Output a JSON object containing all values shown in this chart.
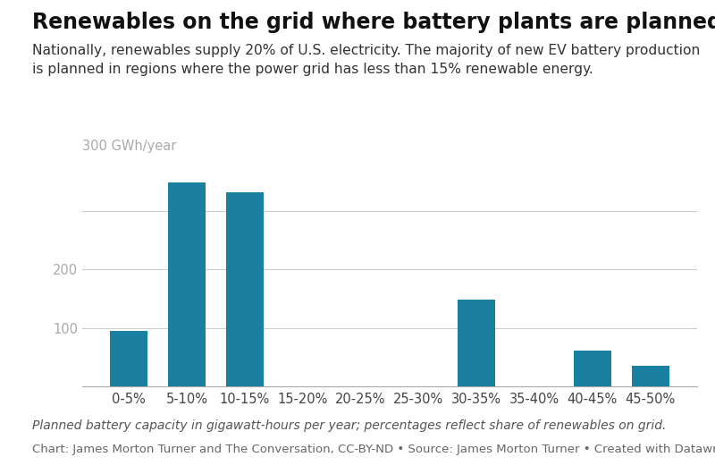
{
  "categories": [
    "0-5%",
    "5-10%",
    "10-15%",
    "15-20%",
    "20-25%",
    "25-30%",
    "30-35%",
    "35-40%",
    "40-45%",
    "45-50%"
  ],
  "values": [
    95,
    350,
    332,
    0,
    0,
    0,
    148,
    0,
    62,
    35
  ],
  "bar_color": "#1a7fa0",
  "title": "Renewables on the grid where battery plants are planned",
  "subtitle": "Nationally, renewables supply 20% of U.S. electricity. The majority of new EV battery production\nis planned in regions where the power grid has less than 15% renewable energy.",
  "gwh_label": "300 GWh/year",
  "yticks": [
    0,
    100,
    200,
    300
  ],
  "ylim": [
    0,
    390
  ],
  "footnote": "Planned battery capacity in gigawatt-hours per year; percentages reflect share of renewables on grid.",
  "source": "Chart: James Morton Turner and The Conversation, CC-BY-ND • Source: James Morton Turner • Created with Datawrapper",
  "background_color": "#ffffff",
  "title_fontsize": 17,
  "subtitle_fontsize": 11.2,
  "tick_fontsize": 10.5,
  "footnote_fontsize": 10,
  "source_fontsize": 9.5,
  "grid_color": "#cccccc",
  "label_color": "#aaaaaa",
  "spine_color": "#aaaaaa"
}
